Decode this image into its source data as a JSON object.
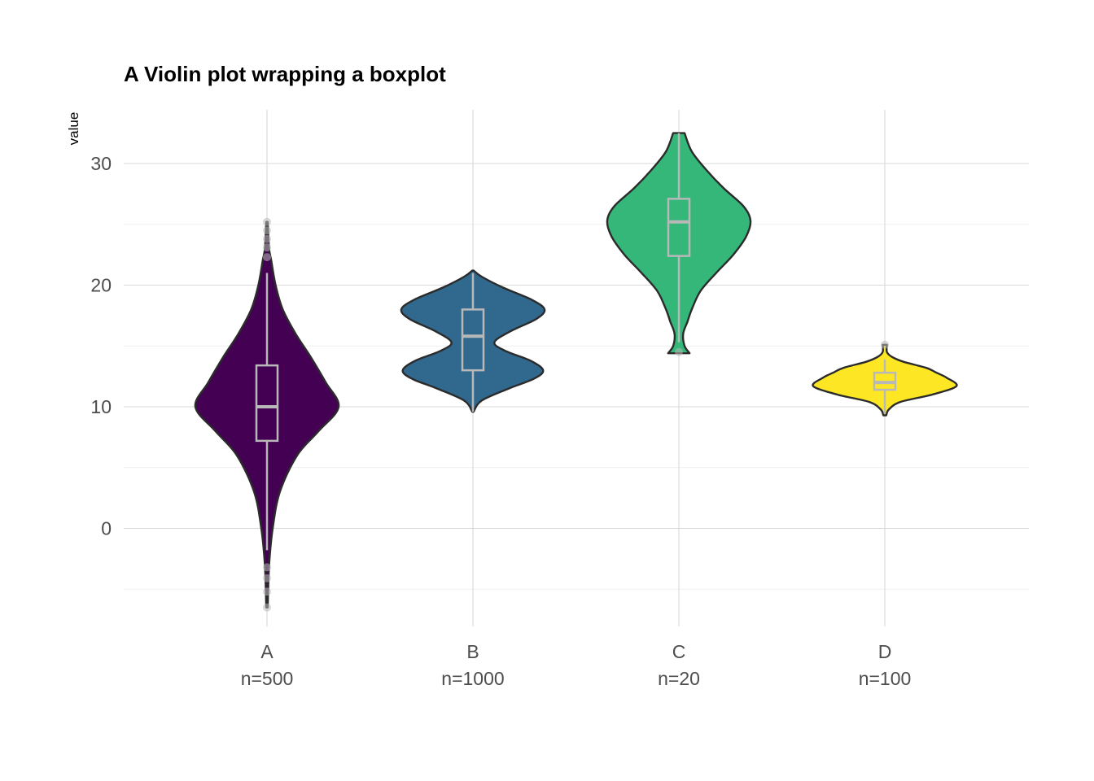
{
  "chart_data": {
    "type": "violin",
    "title": "A Violin plot wrapping a boxplot",
    "xlabel": "",
    "ylabel": "value",
    "ylim": [
      -8,
      35
    ],
    "y_ticks": [
      0,
      10,
      20,
      30
    ],
    "grid": true,
    "legend": "none",
    "categories": [
      "A",
      "B",
      "C",
      "D"
    ],
    "sample_labels": [
      "n=500",
      "n=1000",
      "n=20",
      "n=100"
    ],
    "groups": [
      {
        "name": "A",
        "n": 500,
        "color": "#440154",
        "min": -6.5,
        "max": 25.2,
        "density": [
          [
            -6.5,
            0.01
          ],
          [
            -3,
            0.03
          ],
          [
            0,
            0.08
          ],
          [
            3,
            0.18
          ],
          [
            6,
            0.42
          ],
          [
            8,
            0.72
          ],
          [
            10,
            1.0
          ],
          [
            12,
            0.82
          ],
          [
            14,
            0.62
          ],
          [
            16,
            0.4
          ],
          [
            18,
            0.22
          ],
          [
            20,
            0.12
          ],
          [
            22,
            0.06
          ],
          [
            23,
            0.03
          ],
          [
            25.2,
            0.01
          ]
        ],
        "box": {
          "q1": 7.2,
          "median": 10.0,
          "q3": 13.4,
          "lower": -1.8,
          "upper": 21.0
        },
        "outliers": [
          -6.5,
          -5.2,
          -4.1,
          -3.2,
          22.3,
          23.1,
          23.8,
          24.5,
          25.2
        ]
      },
      {
        "name": "B",
        "n": 1000,
        "color": "#31688e",
        "min": 9.6,
        "max": 21.2,
        "density": [
          [
            9.6,
            0.01
          ],
          [
            10.5,
            0.12
          ],
          [
            11.5,
            0.5
          ],
          [
            12.3,
            0.85
          ],
          [
            13,
            0.98
          ],
          [
            13.8,
            0.8
          ],
          [
            14.6,
            0.45
          ],
          [
            15.3,
            0.3
          ],
          [
            16.2,
            0.52
          ],
          [
            17.2,
            0.88
          ],
          [
            18,
            1.0
          ],
          [
            18.8,
            0.82
          ],
          [
            19.8,
            0.42
          ],
          [
            20.7,
            0.12
          ],
          [
            21.2,
            0.01
          ]
        ],
        "box": {
          "q1": 13.0,
          "median": 15.8,
          "q3": 18.0,
          "lower": 9.6,
          "upper": 21.0
        },
        "outliers": []
      },
      {
        "name": "C",
        "n": 20,
        "color": "#35b779",
        "min": 14.4,
        "max": 32.5,
        "density": [
          [
            14.4,
            0.15
          ],
          [
            15,
            0.08
          ],
          [
            16,
            0.06
          ],
          [
            17,
            0.12
          ],
          [
            18,
            0.18
          ],
          [
            19.5,
            0.3
          ],
          [
            21,
            0.52
          ],
          [
            22.5,
            0.76
          ],
          [
            24,
            0.94
          ],
          [
            25.3,
            1.0
          ],
          [
            26.5,
            0.9
          ],
          [
            28,
            0.62
          ],
          [
            29.5,
            0.38
          ],
          [
            31,
            0.18
          ],
          [
            32.5,
            0.08
          ]
        ],
        "box": {
          "q1": 22.4,
          "median": 25.2,
          "q3": 27.1,
          "lower": 15.3,
          "upper": 32.5
        },
        "outliers": [
          14.5
        ]
      },
      {
        "name": "D",
        "n": 100,
        "color": "#fde725",
        "min": 9.3,
        "max": 15.1,
        "density": [
          [
            9.3,
            0.02
          ],
          [
            9.8,
            0.06
          ],
          [
            10.4,
            0.22
          ],
          [
            11,
            0.66
          ],
          [
            11.7,
            1.0
          ],
          [
            12.4,
            0.86
          ],
          [
            12.8,
            0.72
          ],
          [
            13.2,
            0.58
          ],
          [
            13.7,
            0.26
          ],
          [
            14.1,
            0.1
          ],
          [
            14.5,
            0.03
          ],
          [
            15.1,
            0.03
          ]
        ],
        "box": {
          "q1": 11.4,
          "median": 12.0,
          "q3": 12.8,
          "lower": 9.4,
          "upper": 13.9
        },
        "outliers": [
          15.1
        ]
      }
    ]
  }
}
